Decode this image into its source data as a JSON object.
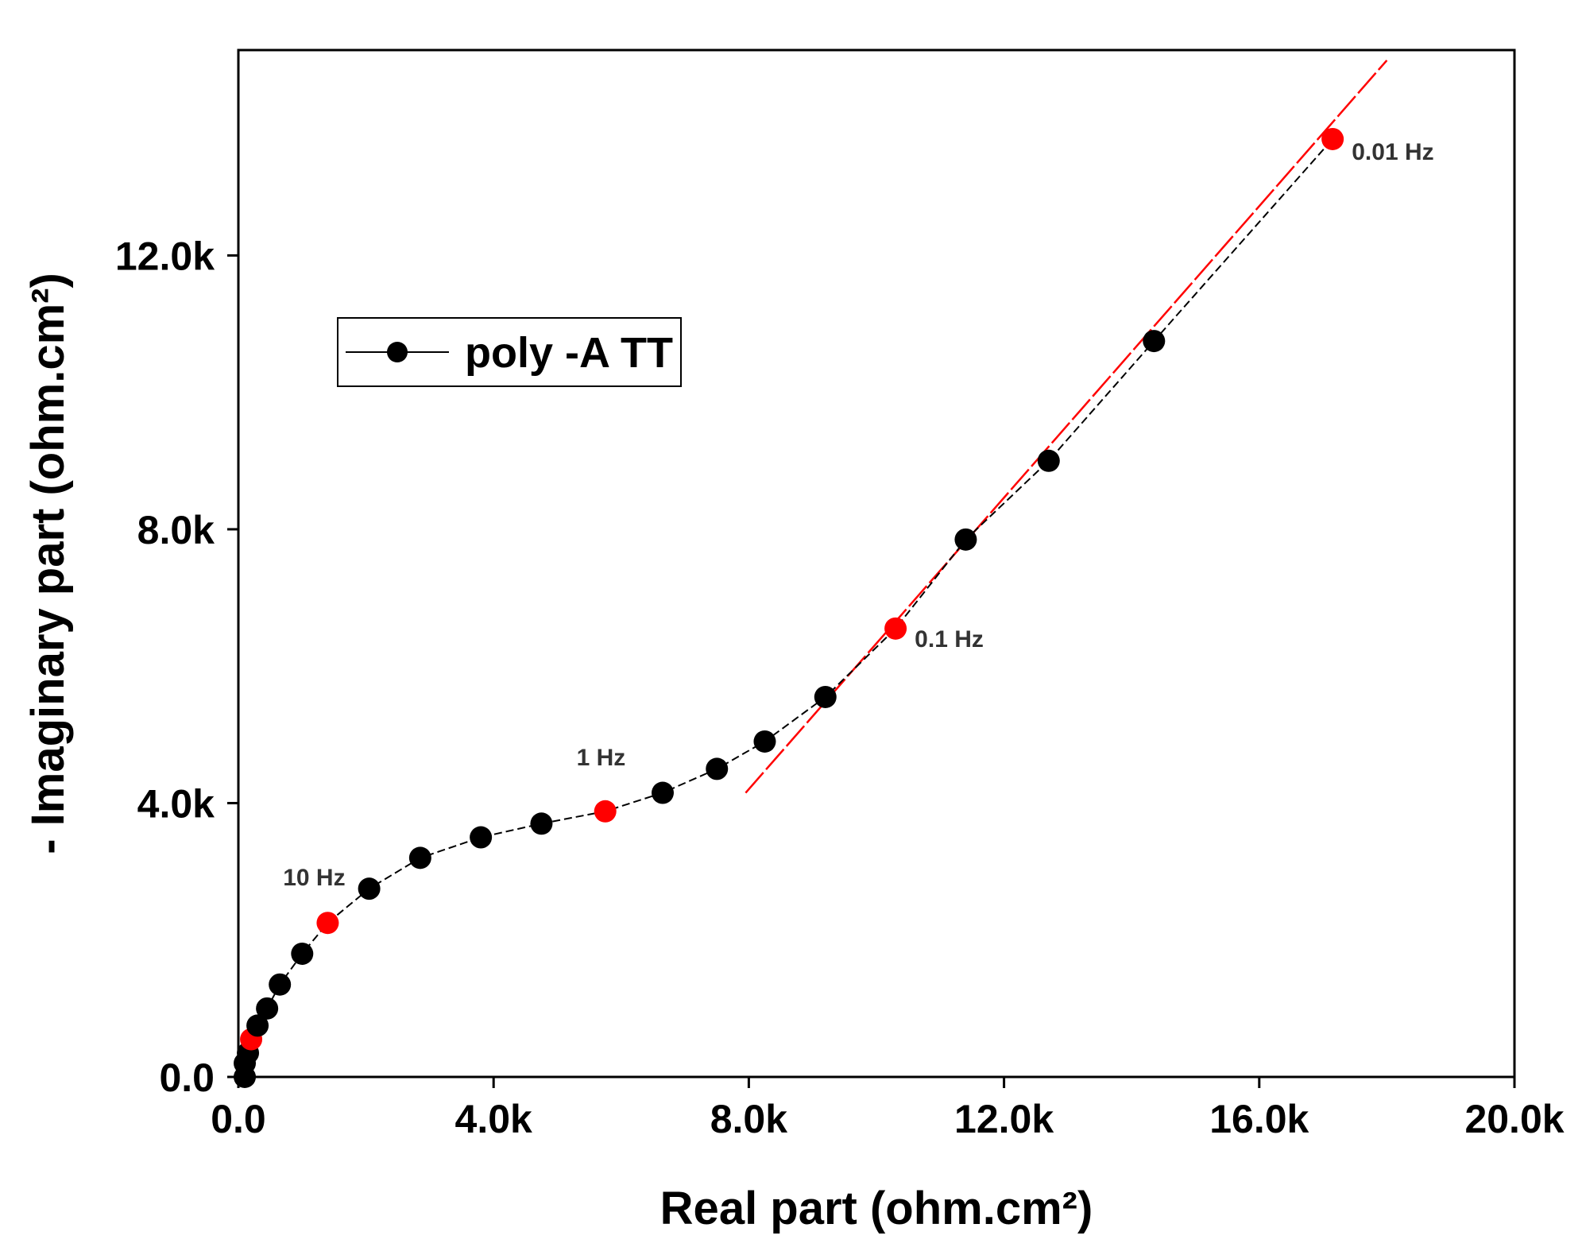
{
  "chart_data": {
    "type": "scatter",
    "title": "",
    "xlabel": "Real part (ohm.cm²)",
    "ylabel": "- Imaginary part (ohm.cm²)",
    "xlim": [
      0,
      20000
    ],
    "ylim": [
      0,
      15000
    ],
    "x_ticks": [
      0,
      4000,
      8000,
      12000,
      16000,
      20000
    ],
    "x_tick_labels": [
      "0.0",
      "4.0k",
      "8.0k",
      "12.0k",
      "16.0k",
      "20.0k"
    ],
    "y_ticks": [
      0,
      4000,
      8000,
      12000
    ],
    "y_tick_labels": [
      "0.0",
      "4.0k",
      "8.0k",
      "12.0k"
    ],
    "grid": false,
    "legend_position": "upper-left",
    "series": [
      {
        "name": "poly -A TT",
        "color": "#000000",
        "line_style": "dashed",
        "points": [
          {
            "x": 100,
            "y": 0,
            "highlight": false
          },
          {
            "x": 100,
            "y": 200,
            "highlight": false
          },
          {
            "x": 150,
            "y": 350,
            "highlight": false
          },
          {
            "x": 200,
            "y": 550,
            "highlight": true
          },
          {
            "x": 300,
            "y": 750,
            "highlight": false
          },
          {
            "x": 450,
            "y": 1000,
            "highlight": false
          },
          {
            "x": 650,
            "y": 1350,
            "highlight": false
          },
          {
            "x": 1000,
            "y": 1800,
            "highlight": false
          },
          {
            "x": 1400,
            "y": 2250,
            "highlight": true
          },
          {
            "x": 2050,
            "y": 2750,
            "highlight": false
          },
          {
            "x": 2850,
            "y": 3200,
            "highlight": false
          },
          {
            "x": 3800,
            "y": 3500,
            "highlight": false
          },
          {
            "x": 4750,
            "y": 3700,
            "highlight": false
          },
          {
            "x": 5750,
            "y": 3880,
            "highlight": true
          },
          {
            "x": 6650,
            "y": 4150,
            "highlight": false
          },
          {
            "x": 7500,
            "y": 4500,
            "highlight": false
          },
          {
            "x": 8250,
            "y": 4900,
            "highlight": false
          },
          {
            "x": 9200,
            "y": 5550,
            "highlight": false
          },
          {
            "x": 10300,
            "y": 6550,
            "highlight": true
          },
          {
            "x": 11400,
            "y": 7850,
            "highlight": false
          },
          {
            "x": 12700,
            "y": 9000,
            "highlight": false
          },
          {
            "x": 14350,
            "y": 10750,
            "highlight": false
          },
          {
            "x": 17150,
            "y": 13700,
            "highlight": true
          }
        ]
      }
    ],
    "fit_line": {
      "color": "#ff0000",
      "x": [
        7950,
        18000
      ],
      "y": [
        4150,
        14850
      ]
    },
    "highlight_color": "#ff0000",
    "annotations": [
      {
        "text": "10 Hz",
        "x": 700,
        "y": 2800
      },
      {
        "text": "1 Hz",
        "x": 5300,
        "y": 4550
      },
      {
        "text": "0.1 Hz",
        "x": 10600,
        "y": 6280
      },
      {
        "text": "0.01 Hz",
        "x": 17450,
        "y": 13400
      }
    ]
  }
}
